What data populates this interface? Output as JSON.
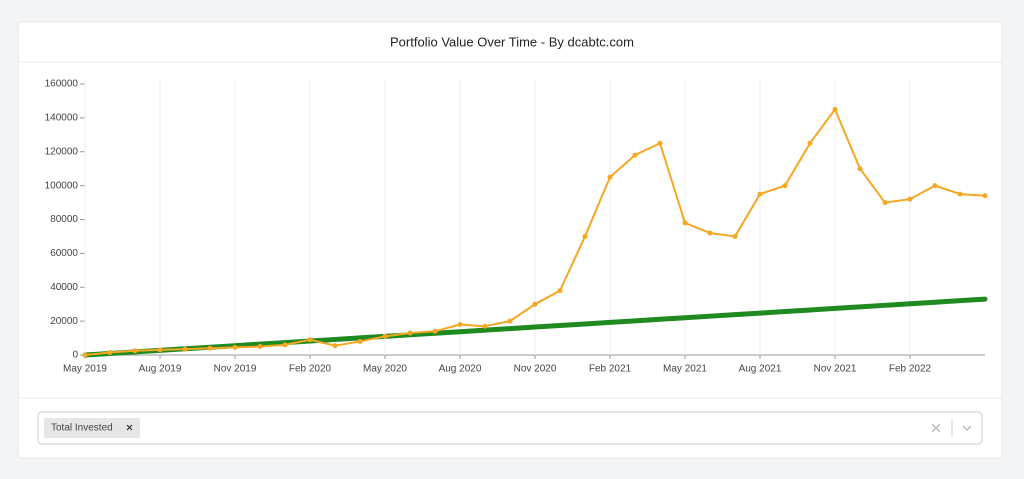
{
  "chart_data": {
    "type": "line",
    "title": "Portfolio Value Over Time - By dcabtc.com",
    "x": [
      "2019-05",
      "2019-06",
      "2019-07",
      "2019-08",
      "2019-09",
      "2019-10",
      "2019-11",
      "2019-12",
      "2020-01",
      "2020-02",
      "2020-03",
      "2020-04",
      "2020-05",
      "2020-06",
      "2020-07",
      "2020-08",
      "2020-09",
      "2020-10",
      "2020-11",
      "2020-12",
      "2021-01",
      "2021-02",
      "2021-03",
      "2021-04",
      "2021-05",
      "2021-06",
      "2021-07",
      "2021-08",
      "2021-09",
      "2021-10",
      "2021-11",
      "2021-12",
      "2022-01",
      "2022-02",
      "2022-03",
      "2022-04",
      "2022-05"
    ],
    "series": [
      {
        "color": "#f5a623",
        "values": [
          0,
          1500,
          2500,
          3000,
          3500,
          4000,
          4500,
          5000,
          6000,
          9000,
          5500,
          8000,
          11000,
          13000,
          14000,
          18000,
          17000,
          20000,
          30000,
          38000,
          70000,
          105000,
          118000,
          125000,
          78000,
          72000,
          70000,
          95000,
          100000,
          125000,
          145000,
          110000,
          90000,
          92000,
          100000,
          95000,
          94000
        ]
      },
      {
        "name": "Total Invested",
        "color": "#1f8a1f",
        "values": [
          0,
          917,
          1833,
          2750,
          3667,
          4583,
          5500,
          6417,
          7333,
          8250,
          9167,
          10083,
          11000,
          11917,
          12833,
          13750,
          14667,
          15583,
          16500,
          17417,
          18333,
          19250,
          20167,
          21083,
          22000,
          22917,
          23833,
          24750,
          25667,
          26583,
          27500,
          28417,
          29333,
          30250,
          31167,
          32083,
          33000
        ]
      }
    ],
    "xlim": [
      "2019-05",
      "2022-05"
    ],
    "xticks": [
      {
        "value": "2019-05",
        "label": "May 2019"
      },
      {
        "value": "2019-08",
        "label": "Aug 2019"
      },
      {
        "value": "2019-11",
        "label": "Nov 2019"
      },
      {
        "value": "2020-02",
        "label": "Feb 2020"
      },
      {
        "value": "2020-05",
        "label": "May 2020"
      },
      {
        "value": "2020-08",
        "label": "Aug 2020"
      },
      {
        "value": "2020-11",
        "label": "Nov 2020"
      },
      {
        "value": "2021-02",
        "label": "Feb 2021"
      },
      {
        "value": "2021-05",
        "label": "May 2021"
      },
      {
        "value": "2021-08",
        "label": "Aug 2021"
      },
      {
        "value": "2021-11",
        "label": "Nov 2021"
      },
      {
        "value": "2022-02",
        "label": "Feb 2022"
      }
    ],
    "ylim": [
      0,
      160000
    ],
    "yticks": [
      0,
      20000,
      40000,
      60000,
      80000,
      100000,
      120000,
      140000,
      160000
    ],
    "grid": true
  }
}
